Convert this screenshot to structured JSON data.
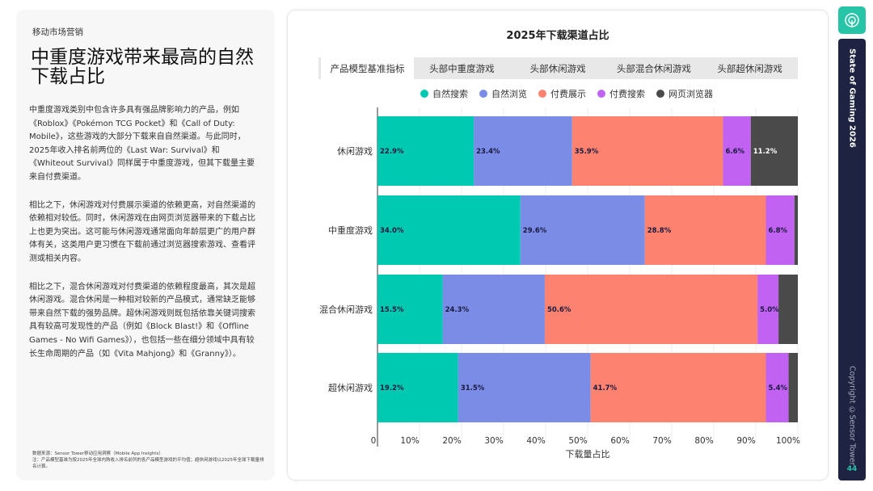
{
  "left": {
    "eyebrow": "移动市场营销",
    "title": "中重度游戏带来最高的自然下载占比",
    "paragraphs": [
      "中重度游戏类别中包含许多具有强品牌影响力的产品，例如《Roblox》《Pokémon TCG Pocket》和《Call of Duty: Mobile》，这些游戏的大部分下载来自自然渠道。与此同时，2025年收入排名前两位的《Last War: Survival》和《Whiteout Survival》同样属于中重度游戏，但其下载量主要来自付费渠道。",
      "相比之下，休闲游戏对付费展示渠道的依赖更高，对自然渠道的依赖相对较低。同时，休闲游戏在由网页浏览器带来的下载占比上也更为突出。这可能与休闲游戏通常面向年龄层更广的用户群体有关，这类用户更习惯在下载前通过浏览器搜索游戏、查看评测或相关内容。",
      "相比之下，混合休闲游戏对付费渠道的依赖程度最高，其次是超休闲游戏。混合休闲是一种相对较新的产品模式，通常缺乏能够带来自然下载的强势品牌。超休闲游戏则既包括依靠关键词搜索具有较高可发现性的产品（例如《Block Blast!》和《Offline Games - No Wifi Games》），也包括一些在细分领域中具有较长生命周期的产品（如《Vita Mahjong》和《Granny》）。"
    ],
    "footnotes": [
      "数据来源：Sensor Tower移动应用洞察（Mobile App Insights）",
      "注：产品模型基准为按2025年全球内购收入排名前列的各产品模型游戏的平均值；超休闲游戏以2025年全球下载量排名计算。"
    ]
  },
  "tabs": [
    {
      "label": "产品模型基准指标",
      "active": true
    },
    {
      "label": "头部中重度游戏"
    },
    {
      "label": "头部休闲游戏"
    },
    {
      "label": "头部混合休闲游戏"
    },
    {
      "label": "头部超休闲游戏"
    }
  ],
  "sidebar": {
    "title": "State of Gaming 2026",
    "copyright": "Copyright ©Sensor Tower",
    "page": "44",
    "logo_icon": "sensor-tower-logo-icon",
    "accent": "#27c4a8",
    "bg": "#1d2340"
  },
  "chart_data": {
    "type": "bar",
    "orientation": "horizontal",
    "stacked": true,
    "title": "2025年下载渠道占比",
    "xlabel": "下载量占比",
    "ylabel": "",
    "xlim": [
      0,
      100
    ],
    "xticks": [
      "0",
      "10%",
      "20%",
      "30%",
      "40%",
      "50%",
      "60%",
      "70%",
      "80%",
      "90%",
      "100%"
    ],
    "categories": [
      "休闲游戏",
      "中重度游戏",
      "混合休闲游戏",
      "超休闲游戏"
    ],
    "legend_position": "top",
    "grid": true,
    "series": [
      {
        "name": "自然搜索",
        "color": "#00c9b1",
        "values": [
          22.9,
          34.0,
          15.5,
          19.2
        ],
        "labels": [
          "22.9%",
          "34.0%",
          "15.5%",
          "19.2%"
        ]
      },
      {
        "name": "自然浏览",
        "color": "#7a8ce6",
        "values": [
          23.4,
          29.6,
          24.3,
          31.5
        ],
        "labels": [
          "23.4%",
          "29.6%",
          "24.3%",
          "31.5%"
        ]
      },
      {
        "name": "付费展示",
        "color": "#fd8270",
        "values": [
          35.9,
          28.8,
          50.6,
          41.7
        ],
        "labels": [
          "35.9%",
          "28.8%",
          "50.6%",
          "41.7%"
        ]
      },
      {
        "name": "付费搜索",
        "color": "#c262f2",
        "values": [
          6.6,
          6.8,
          5.0,
          5.4
        ],
        "labels": [
          "6.6%",
          "6.8%",
          "5.0%",
          "5.4%"
        ]
      },
      {
        "name": "网页浏览器",
        "color": "#4a4a4a",
        "values": [
          11.2,
          0.8,
          4.6,
          2.2
        ],
        "labels": [
          "11.2%",
          "",
          "",
          ""
        ]
      }
    ]
  }
}
